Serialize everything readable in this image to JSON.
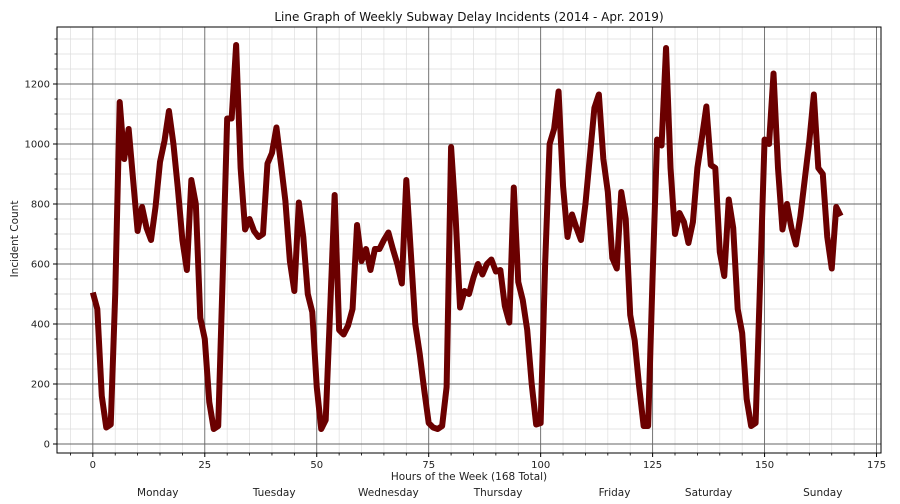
{
  "chart_data": {
    "type": "line",
    "title": "Line Graph of Weekly Subway Delay Incidents (2014 - Apr. 2019)",
    "xlabel": "Hours of the Week (168 Total)",
    "ylabel": "Incident Count",
    "xlim": [
      -8,
      176
    ],
    "ylim": [
      -30,
      1390
    ],
    "xticks": [
      0,
      25,
      50,
      75,
      100,
      125,
      150,
      175
    ],
    "yticks": [
      0,
      200,
      400,
      600,
      800,
      1000,
      1200
    ],
    "grid": true,
    "line_color": "#6b0000",
    "day_labels": [
      {
        "label": "Monday",
        "x": 14.5
      },
      {
        "label": "Tuesday",
        "x": 40.5
      },
      {
        "label": "Wednesday",
        "x": 66
      },
      {
        "label": "Thursday",
        "x": 90.5
      },
      {
        "label": "Friday",
        "x": 116.5
      },
      {
        "label": "Saturday",
        "x": 137.5
      },
      {
        "label": "Sunday",
        "x": 163
      }
    ],
    "series": [
      {
        "x": [
          0,
          1,
          2,
          3,
          4,
          5,
          6,
          7,
          8,
          9,
          10,
          11,
          12,
          13,
          14,
          15,
          16,
          17,
          18,
          19,
          20,
          21,
          22,
          23,
          24,
          25,
          26,
          27,
          28,
          29,
          30,
          31,
          32,
          33,
          34,
          35,
          36,
          37,
          38,
          39,
          40,
          41,
          42,
          43,
          44,
          45,
          46,
          47,
          48,
          49,
          50,
          51,
          52,
          53,
          54,
          55,
          56,
          57,
          58,
          59,
          60,
          61,
          62,
          63,
          64,
          65,
          66,
          67,
          68,
          69,
          70,
          71,
          72,
          73,
          74,
          75,
          76,
          77,
          78,
          79,
          80,
          81,
          82,
          83,
          84,
          85,
          86,
          87,
          88,
          89,
          90,
          91,
          92,
          93,
          94,
          95,
          96,
          97,
          98,
          99,
          100,
          101,
          102,
          103,
          104,
          105,
          106,
          107,
          108,
          109,
          110,
          111,
          112,
          113,
          114,
          115,
          116,
          117,
          118,
          119,
          120,
          121,
          122,
          123,
          124,
          125,
          126,
          127,
          128,
          129,
          130,
          131,
          132,
          133,
          134,
          135,
          136,
          137,
          138,
          139,
          140,
          141,
          142,
          143,
          144,
          145,
          146,
          147,
          148,
          149,
          150,
          151,
          152,
          153,
          154,
          155,
          156,
          157,
          158,
          159,
          160,
          161,
          162,
          163,
          164,
          165,
          166,
          167
        ],
        "values": [
          505,
          450,
          160,
          55,
          65,
          500,
          1140,
          950,
          1050,
          880,
          710,
          790,
          720,
          680,
          790,
          940,
          1010,
          1110,
          1000,
          850,
          680,
          580,
          880,
          800,
          420,
          350,
          140,
          50,
          60,
          560,
          1085,
          1085,
          1330,
          920,
          715,
          750,
          710,
          690,
          700,
          935,
          970,
          1055,
          935,
          810,
          610,
          510,
          805,
          690,
          500,
          440,
          190,
          50,
          80,
          450,
          830,
          380,
          365,
          395,
          450,
          730,
          610,
          650,
          580,
          650,
          650,
          680,
          705,
          650,
          600,
          535,
          880,
          640,
          400,
          300,
          180,
          70,
          55,
          50,
          60,
          190,
          990,
          760,
          455,
          510,
          500,
          555,
          600,
          565,
          600,
          615,
          575,
          580,
          460,
          405,
          855,
          540,
          480,
          380,
          200,
          65,
          70,
          600,
          1000,
          1050,
          1175,
          860,
          690,
          765,
          720,
          680,
          800,
          960,
          1120,
          1165,
          950,
          840,
          620,
          585,
          840,
          750,
          430,
          345,
          190,
          60,
          60,
          560,
          1015,
          995,
          1320,
          920,
          700,
          770,
          740,
          670,
          740,
          920,
          1020,
          1125,
          930,
          920,
          640,
          560,
          815,
          720,
          450,
          370,
          150,
          60,
          70,
          540,
          1015,
          1000,
          1235,
          920,
          715,
          800,
          720,
          665,
          760,
          885,
          1010,
          1165,
          920,
          900,
          690,
          585,
          790,
          760
        ]
      }
    ]
  }
}
